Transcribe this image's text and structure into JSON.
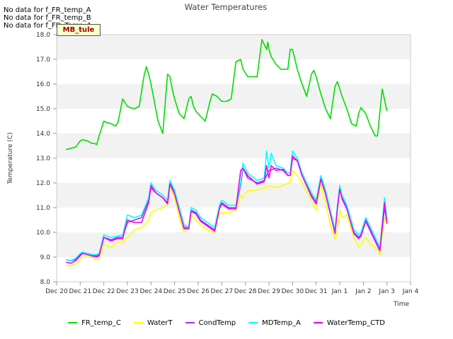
{
  "nodata_messages": [
    "No data for f_FR_temp_A",
    "No data for f_FR_temp_B",
    "No data for f_FD_Temp_1"
  ],
  "badge": "MB_tule",
  "chart_data": {
    "type": "line",
    "title": "Water Temperatures",
    "xlabel": "Time",
    "ylabel": "Temperature (C)",
    "ylim": [
      8.0,
      18.0
    ],
    "yticks": [
      "8.0",
      "9.0",
      "10.0",
      "11.0",
      "12.0",
      "13.0",
      "14.0",
      "15.0",
      "16.0",
      "17.0",
      "18.0"
    ],
    "xlim": [
      "Dec 20",
      "Jan 4"
    ],
    "xticks": [
      "Dec 20",
      "Dec 21",
      "Dec 22",
      "Dec 23",
      "Dec 24",
      "Dec 25",
      "Dec 26",
      "Dec 27",
      "Dec 28",
      "Dec 29",
      "Dec 30",
      "Dec 31",
      "Jan 1",
      "Jan 2",
      "Jan 3",
      "Jan 4"
    ],
    "grid": "banded",
    "legend_position": "bottom",
    "series": [
      {
        "name": "FR_temp_C",
        "color": "#00dd00",
        "x": [
          0.4,
          0.6,
          0.8,
          1.0,
          1.1,
          1.3,
          1.5,
          1.6,
          1.7,
          1.8,
          2.0,
          2.1,
          2.3,
          2.5,
          2.6,
          2.8,
          3.0,
          3.1,
          3.3,
          3.5,
          3.7,
          3.8,
          3.9,
          4.0,
          4.1,
          4.2,
          4.3,
          4.5,
          4.7,
          4.8,
          4.9,
          5.0,
          5.2,
          5.4,
          5.6,
          5.7,
          5.8,
          5.9,
          6.1,
          6.3,
          6.5,
          6.6,
          6.8,
          7.0,
          7.2,
          7.4,
          7.6,
          7.8,
          7.9,
          8.1,
          8.3,
          8.5,
          8.7,
          8.9,
          8.95,
          9.0,
          9.1,
          9.3,
          9.5,
          9.8,
          9.9,
          10.0,
          10.2,
          10.4,
          10.6,
          10.8,
          10.9,
          11.0,
          11.2,
          11.4,
          11.6,
          11.8,
          11.9,
          12.0,
          12.1,
          12.3,
          12.5,
          12.7,
          12.8,
          12.9,
          13.1,
          13.3,
          13.5,
          13.6,
          13.8,
          14.0
        ],
        "y": [
          13.35,
          13.4,
          13.45,
          13.7,
          13.75,
          13.7,
          13.6,
          13.6,
          13.55,
          13.9,
          14.5,
          14.45,
          14.4,
          14.3,
          14.45,
          15.4,
          15.1,
          15.05,
          15.0,
          15.1,
          16.3,
          16.7,
          16.4,
          16.0,
          15.5,
          15.0,
          14.5,
          14.0,
          16.4,
          16.3,
          15.8,
          15.4,
          14.8,
          14.6,
          15.4,
          15.5,
          15.1,
          14.9,
          14.7,
          14.5,
          15.3,
          15.6,
          15.5,
          15.3,
          15.3,
          15.4,
          16.9,
          17.0,
          16.6,
          16.3,
          16.3,
          16.3,
          17.8,
          17.4,
          17.7,
          17.4,
          17.1,
          16.8,
          16.6,
          16.6,
          17.4,
          17.4,
          16.6,
          16.0,
          15.5,
          16.4,
          16.55,
          16.3,
          15.6,
          15.0,
          14.6,
          15.9,
          16.1,
          15.8,
          15.5,
          15.0,
          14.4,
          14.3,
          14.8,
          15.05,
          14.8,
          14.3,
          13.9,
          13.9,
          15.8,
          14.9
        ]
      },
      {
        "name": "WaterT",
        "color": "#ffff00",
        "x": [
          0.4,
          0.6,
          0.8,
          1.0,
          1.1,
          1.3,
          1.5,
          1.7,
          1.8,
          2.0,
          2.3,
          2.6,
          2.8,
          3.0,
          3.3,
          3.6,
          3.9,
          4.0,
          4.2,
          4.5,
          4.7,
          4.8,
          5.0,
          5.2,
          5.4,
          5.6,
          5.7,
          5.9,
          6.1,
          6.4,
          6.7,
          6.9,
          7.0,
          7.3,
          7.6,
          7.8,
          7.9,
          8.1,
          8.5,
          8.8,
          9.0,
          9.3,
          9.6,
          9.8,
          9.9,
          10.0,
          10.2,
          10.4,
          10.8,
          11.0,
          11.2,
          11.4,
          11.6,
          11.8,
          11.9,
          12.0,
          12.1,
          12.3,
          12.6,
          12.8,
          12.9,
          13.1,
          13.3,
          13.5,
          13.7,
          13.9,
          14.0
        ],
        "y": [
          8.65,
          8.65,
          8.7,
          8.9,
          9.0,
          9.0,
          9.0,
          8.9,
          8.9,
          9.5,
          9.4,
          9.6,
          9.6,
          9.8,
          10.1,
          10.2,
          10.5,
          10.8,
          10.9,
          11.0,
          11.1,
          11.8,
          11.4,
          10.6,
          10.0,
          10.2,
          10.7,
          10.5,
          10.3,
          10.1,
          10.0,
          10.8,
          10.8,
          10.8,
          10.9,
          11.5,
          11.4,
          11.7,
          11.7,
          11.8,
          11.9,
          11.8,
          11.9,
          12.0,
          12.0,
          12.5,
          12.3,
          12.0,
          11.3,
          10.9,
          12.0,
          11.2,
          10.3,
          9.7,
          10.1,
          10.9,
          10.6,
          10.7,
          9.8,
          9.4,
          9.5,
          9.8,
          9.5,
          9.4,
          9.1,
          10.6,
          10.4
        ]
      },
      {
        "name": "CondTemp",
        "color": "#9933ff",
        "x": [
          0.4,
          0.6,
          0.8,
          1.0,
          1.1,
          1.3,
          1.5,
          1.7,
          1.8,
          2.0,
          2.3,
          2.6,
          2.8,
          3.0,
          3.3,
          3.6,
          3.9,
          4.0,
          4.2,
          4.5,
          4.7,
          4.8,
          5.0,
          5.2,
          5.4,
          5.6,
          5.7,
          5.9,
          6.1,
          6.4,
          6.7,
          6.9,
          7.0,
          7.3,
          7.6,
          7.8,
          7.9,
          8.1,
          8.5,
          8.8,
          9.0,
          9.3,
          9.6,
          9.8,
          9.9,
          10.0,
          10.2,
          10.4,
          10.8,
          11.0,
          11.2,
          11.4,
          11.6,
          11.8,
          11.9,
          12.0,
          12.1,
          12.3,
          12.6,
          12.8,
          12.9,
          13.1,
          13.3,
          13.5,
          13.7,
          13.9,
          14.0
        ],
        "y": [
          8.9,
          8.85,
          8.9,
          9.1,
          9.2,
          9.15,
          9.1,
          9.05,
          9.1,
          9.8,
          9.7,
          9.8,
          9.8,
          10.4,
          10.5,
          10.6,
          11.3,
          11.8,
          11.6,
          11.4,
          11.2,
          12.0,
          11.6,
          10.9,
          10.2,
          10.2,
          10.9,
          10.8,
          10.5,
          10.3,
          10.1,
          11.0,
          11.2,
          11.0,
          11.0,
          11.9,
          12.6,
          12.2,
          12.0,
          12.1,
          12.5,
          12.6,
          12.5,
          12.3,
          12.3,
          13.0,
          12.9,
          12.3,
          11.5,
          11.2,
          12.2,
          11.6,
          10.8,
          10.0,
          11.0,
          11.8,
          11.4,
          11.0,
          10.0,
          9.8,
          9.9,
          10.5,
          10.1,
          9.7,
          9.3,
          11.0,
          10.4
        ]
      },
      {
        "name": "MDTemp_A",
        "color": "#00ffff",
        "x": [
          0.4,
          0.6,
          0.8,
          1.0,
          1.1,
          1.3,
          1.5,
          1.7,
          1.8,
          2.0,
          2.3,
          2.6,
          2.8,
          3.0,
          3.3,
          3.6,
          3.9,
          4.0,
          4.2,
          4.5,
          4.7,
          4.8,
          5.0,
          5.2,
          5.4,
          5.6,
          5.7,
          5.9,
          6.1,
          6.4,
          6.7,
          6.9,
          7.0,
          7.3,
          7.6,
          7.8,
          7.9,
          8.1,
          8.5,
          8.8,
          8.9,
          9.0,
          9.1,
          9.3,
          9.6,
          9.8,
          9.9,
          10.0,
          10.2,
          10.4,
          10.8,
          11.0,
          11.2,
          11.4,
          11.6,
          11.8,
          11.9,
          12.0,
          12.1,
          12.3,
          12.6,
          12.8,
          12.9,
          13.1,
          13.3,
          13.5,
          13.7,
          13.9,
          14.0
        ],
        "y": [
          8.9,
          8.85,
          8.95,
          9.15,
          9.2,
          9.15,
          9.1,
          9.1,
          9.15,
          9.9,
          9.8,
          9.85,
          9.9,
          10.7,
          10.6,
          10.7,
          11.4,
          12.0,
          11.7,
          11.5,
          11.3,
          12.1,
          11.7,
          11.0,
          10.3,
          10.2,
          11.0,
          10.9,
          10.6,
          10.4,
          10.2,
          11.1,
          11.3,
          11.1,
          11.1,
          12.0,
          12.8,
          12.4,
          12.1,
          12.2,
          13.3,
          12.6,
          13.2,
          12.7,
          12.6,
          12.4,
          12.4,
          13.3,
          13.0,
          12.4,
          11.6,
          11.3,
          12.3,
          11.7,
          10.9,
          10.1,
          11.1,
          11.9,
          11.5,
          11.1,
          10.1,
          9.9,
          10.0,
          10.6,
          10.2,
          9.8,
          9.4,
          11.4,
          10.5
        ]
      },
      {
        "name": "WaterTemp_CTD",
        "color": "#ee00ee",
        "x": [
          0.4,
          0.6,
          0.8,
          1.0,
          1.1,
          1.3,
          1.5,
          1.7,
          1.8,
          2.0,
          2.3,
          2.6,
          2.8,
          3.0,
          3.3,
          3.6,
          3.9,
          4.0,
          4.2,
          4.5,
          4.7,
          4.8,
          5.0,
          5.2,
          5.4,
          5.6,
          5.7,
          5.9,
          6.1,
          6.4,
          6.7,
          6.9,
          7.0,
          7.3,
          7.6,
          7.8,
          7.9,
          8.1,
          8.5,
          8.8,
          8.9,
          9.0,
          9.1,
          9.3,
          9.6,
          9.8,
          9.9,
          10.0,
          10.2,
          10.4,
          10.8,
          11.0,
          11.2,
          11.4,
          11.6,
          11.8,
          11.9,
          12.0,
          12.1,
          12.3,
          12.6,
          12.8,
          12.9,
          13.1,
          13.3,
          13.5,
          13.7,
          13.9,
          14.0
        ],
        "y": [
          8.8,
          8.75,
          8.85,
          9.05,
          9.15,
          9.1,
          9.05,
          9.0,
          9.05,
          9.8,
          9.65,
          9.75,
          9.75,
          10.5,
          10.4,
          10.4,
          11.2,
          11.9,
          11.6,
          11.4,
          11.15,
          11.95,
          11.55,
          10.85,
          10.15,
          10.15,
          10.85,
          10.75,
          10.45,
          10.25,
          10.05,
          10.95,
          11.15,
          10.95,
          10.95,
          12.5,
          12.6,
          12.3,
          11.95,
          12.05,
          12.7,
          12.2,
          12.7,
          12.5,
          12.55,
          12.3,
          12.3,
          13.1,
          12.9,
          12.3,
          11.45,
          11.15,
          12.15,
          11.55,
          10.75,
          9.95,
          10.95,
          11.75,
          11.35,
          10.95,
          9.95,
          9.75,
          9.85,
          10.45,
          10.05,
          9.65,
          9.25,
          11.2,
          10.35
        ]
      }
    ]
  }
}
